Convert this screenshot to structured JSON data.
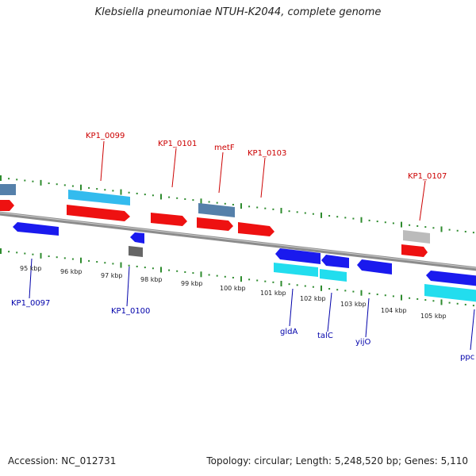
{
  "title": "Klebsiella pneumoniae NTUH-K2044, complete genome",
  "accession": "Accession: NC_012731",
  "summary": "Topology: circular; Length: 5,248,520 bp; Genes: 5,110",
  "colors": {
    "backbone": "#8c8c8c",
    "tick": "#2e8b2e",
    "forward_label": "#cc0000",
    "reverse_label": "#0000aa",
    "cds": "#ee1111",
    "gene_blue": "#1a1aee",
    "cyan": "#22ddee",
    "light_blue": "#33bbee",
    "steel": "#5580aa",
    "gray": "#666666",
    "light_gray": "#bbbbbb"
  },
  "scale_labels": [
    "95 kbp",
    "96 kbp",
    "97 kbp",
    "98 kbp",
    "99 kbp",
    "100 kbp",
    "101 kbp",
    "102 kbp",
    "103 kbp",
    "104 kbp",
    "105 kbp"
  ],
  "forward_gene_labels": [
    "KP1_0099",
    "KP1_0101",
    "metF",
    "KP1_0103",
    "KP1_0107"
  ],
  "reverse_gene_labels": [
    "KP1_0097",
    "KP1_0100",
    "gldA",
    "talC",
    "yijO",
    "ppc"
  ]
}
